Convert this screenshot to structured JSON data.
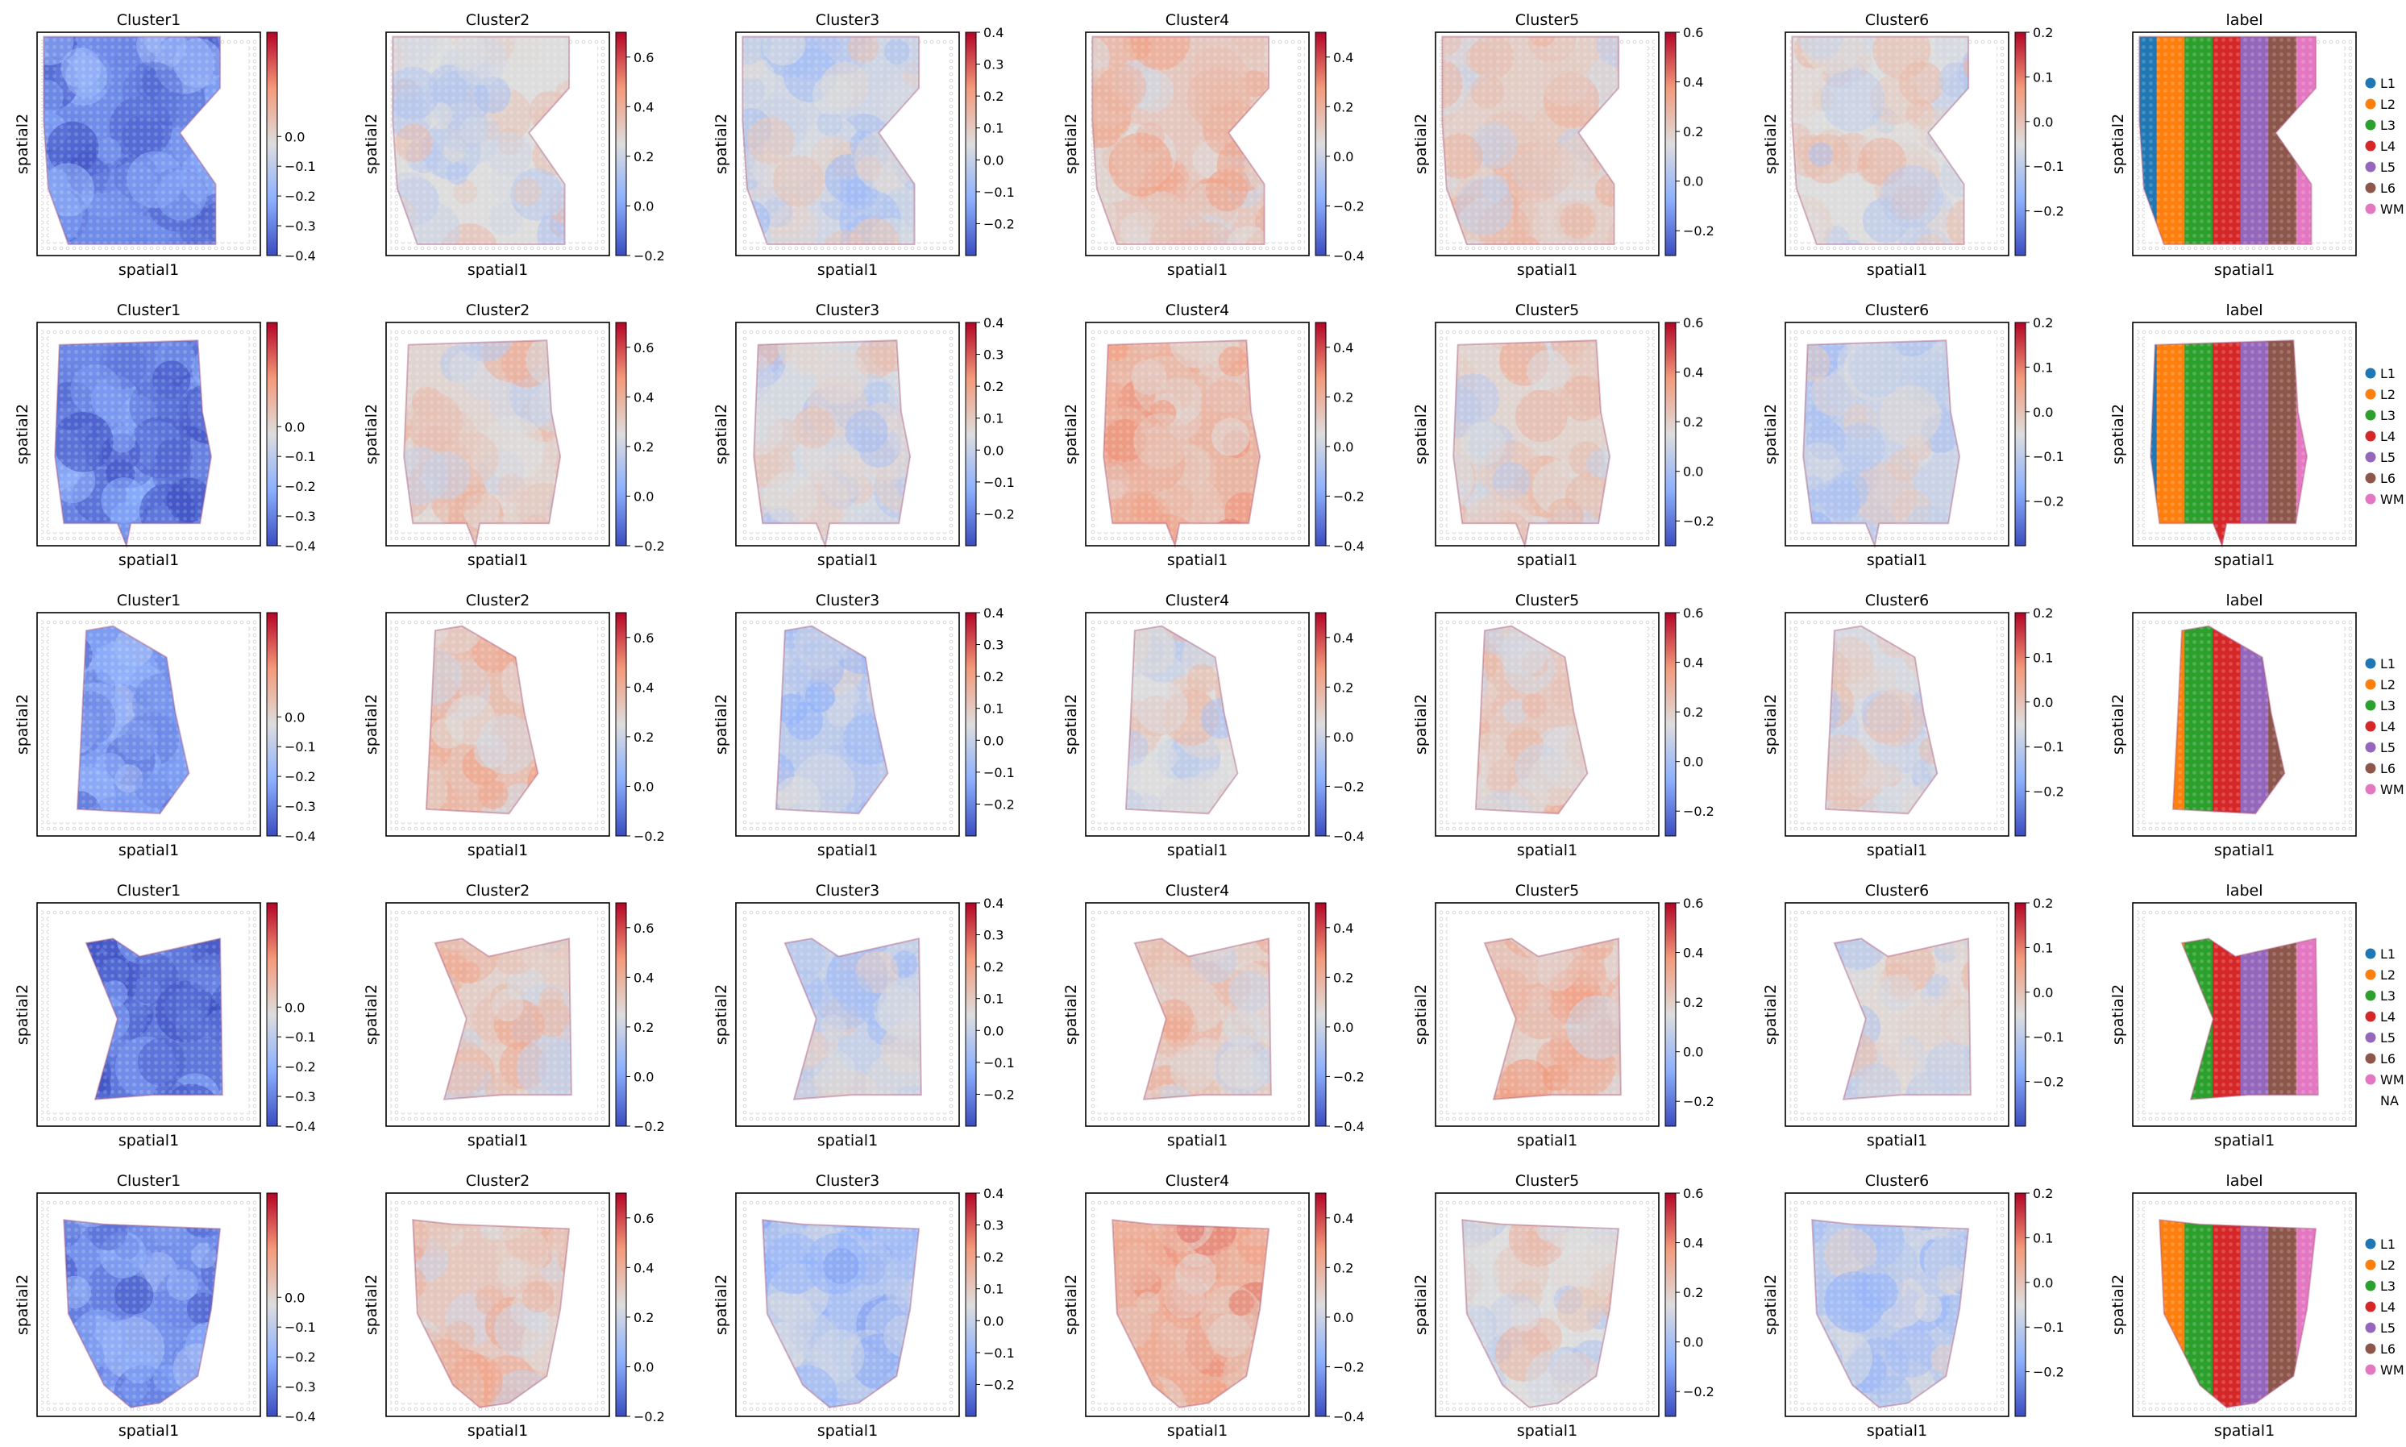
{
  "figure": {
    "xlabel": "spatial1",
    "ylabel": "spatial2"
  },
  "colors": {
    "L1": "#1f77b4",
    "L2": "#ff7f0e",
    "L3": "#2ca02c",
    "L4": "#d62728",
    "L5": "#9467bd",
    "L6": "#8c564b",
    "WM": "#e377c2",
    "NA": "#ffffff"
  },
  "chart_data": {
    "type": "spatial-heatmap-grid",
    "rows": 5,
    "columns": [
      "Cluster1",
      "Cluster2",
      "Cluster3",
      "Cluster4",
      "Cluster5",
      "Cluster6",
      "label"
    ],
    "colormap": "coolwarm",
    "colorbars": {
      "Cluster1": {
        "vmin": -0.4,
        "vmax": 0.35,
        "ticks": [
          0.0,
          -0.1,
          -0.2,
          -0.3,
          -0.4
        ],
        "tick_labels": [
          "0.0",
          "−0.1",
          "−0.2",
          "−0.3",
          "−0.4"
        ]
      },
      "Cluster2": {
        "vmin": -0.2,
        "vmax": 0.7,
        "ticks": [
          0.6,
          0.4,
          0.2,
          0.0,
          -0.2
        ],
        "tick_labels": [
          "0.6",
          "0.4",
          "0.2",
          "0.0",
          "−0.2"
        ]
      },
      "Cluster3": {
        "vmin": -0.3,
        "vmax": 0.4,
        "ticks": [
          0.4,
          0.3,
          0.2,
          0.1,
          0.0,
          -0.1,
          -0.2
        ],
        "tick_labels": [
          "0.4",
          "0.3",
          "0.2",
          "0.1",
          "0.0",
          "−0.1",
          "−0.2"
        ]
      },
      "Cluster4": {
        "vmin": -0.4,
        "vmax": 0.5,
        "ticks": [
          0.4,
          0.2,
          0.0,
          -0.2,
          -0.4
        ],
        "tick_labels": [
          "0.4",
          "0.2",
          "0.0",
          "−0.2",
          "−0.4"
        ]
      },
      "Cluster5": {
        "vmin": -0.3,
        "vmax": 0.6,
        "ticks": [
          0.6,
          0.4,
          0.2,
          0.0,
          -0.2
        ],
        "tick_labels": [
          "0.6",
          "0.4",
          "0.2",
          "0.0",
          "−0.2"
        ]
      },
      "Cluster6": {
        "vmin": -0.3,
        "vmax": 0.2,
        "ticks": [
          0.2,
          0.1,
          0.0,
          -0.1,
          -0.2
        ],
        "tick_labels": [
          "0.2",
          "0.1",
          "0.0",
          "−0.1",
          "−0.2"
        ]
      }
    },
    "legend": {
      "labels": [
        [
          "L1",
          "L2",
          "L3",
          "L4",
          "L5",
          "L6",
          "WM"
        ],
        [
          "L1",
          "L2",
          "L3",
          "L4",
          "L5",
          "L6",
          "WM"
        ],
        [
          "L1",
          "L2",
          "L3",
          "L4",
          "L5",
          "L6",
          "WM"
        ],
        [
          "L1",
          "L2",
          "L3",
          "L4",
          "L5",
          "L6",
          "WM",
          "NA"
        ],
        [
          "L1",
          "L2",
          "L3",
          "L4",
          "L5",
          "L6",
          "WM"
        ]
      ]
    },
    "mean_values": [
      [
        -0.28,
        0.25,
        0.02,
        0.12,
        0.2,
        -0.05
      ],
      [
        -0.3,
        0.28,
        0.03,
        0.18,
        0.18,
        -0.08
      ],
      [
        -0.25,
        0.35,
        -0.02,
        0.05,
        0.22,
        -0.06
      ],
      [
        -0.32,
        0.3,
        0.0,
        0.1,
        0.24,
        -0.04
      ],
      [
        -0.27,
        0.32,
        -0.06,
        0.2,
        0.15,
        -0.1
      ]
    ],
    "grid": false
  }
}
